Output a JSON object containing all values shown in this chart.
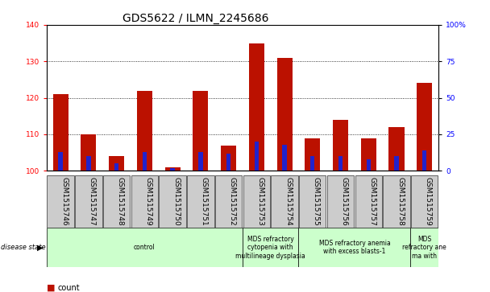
{
  "title": "GDS5622 / ILMN_2245686",
  "samples": [
    "GSM1515746",
    "GSM1515747",
    "GSM1515748",
    "GSM1515749",
    "GSM1515750",
    "GSM1515751",
    "GSM1515752",
    "GSM1515753",
    "GSM1515754",
    "GSM1515755",
    "GSM1515756",
    "GSM1515757",
    "GSM1515758",
    "GSM1515759"
  ],
  "count_values": [
    121,
    110,
    104,
    122,
    101,
    122,
    107,
    135,
    131,
    109,
    114,
    109,
    112,
    124
  ],
  "percentile_values": [
    13,
    10,
    5,
    13,
    2,
    13,
    12,
    20,
    18,
    10,
    10,
    8,
    10,
    14
  ],
  "ylim_left": [
    100,
    140
  ],
  "ylim_right": [
    0,
    100
  ],
  "yticks_left": [
    100,
    110,
    120,
    130,
    140
  ],
  "yticks_right": [
    0,
    25,
    50,
    75,
    100
  ],
  "disease_groups": [
    {
      "label": "control",
      "start": 0,
      "end": 7
    },
    {
      "label": "MDS refractory\ncytopenia with\nmultilineage dysplasia",
      "start": 7,
      "end": 9
    },
    {
      "label": "MDS refractory anemia\nwith excess blasts-1",
      "start": 9,
      "end": 13
    },
    {
      "label": "MDS\nrefractory ane\nma with",
      "start": 13,
      "end": 14
    }
  ],
  "group_color": "#ccffcc",
  "bar_color": "#bb1100",
  "blue_color": "#2222cc",
  "tick_box_color": "#cccccc",
  "plot_bg": "#ffffff",
  "title_fontsize": 10,
  "tick_fontsize": 6.5,
  "annot_fontsize": 5.5,
  "legend_fontsize": 7
}
